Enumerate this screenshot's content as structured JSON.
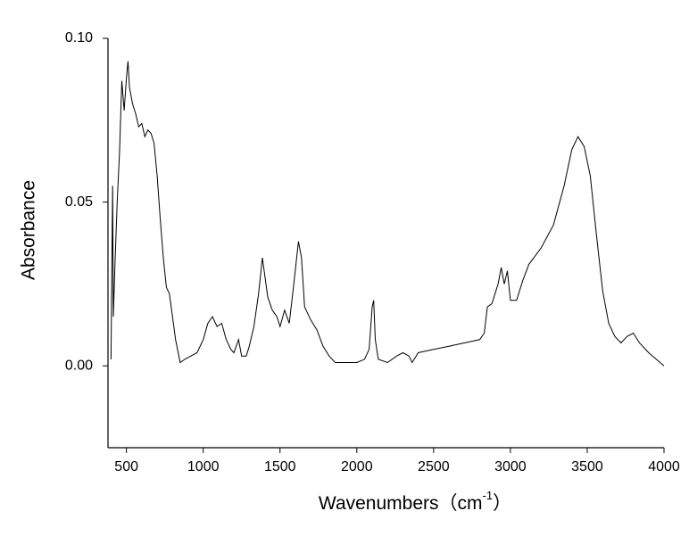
{
  "chart_data": {
    "type": "line",
    "x_label": [
      "Wavenumbers（cm",
      "-1",
      "）"
    ],
    "y_label": "Absorbance",
    "color": "#000000",
    "xlim": [
      380,
      4000
    ],
    "ylim": [
      -0.025,
      0.1
    ],
    "xticks": [
      500,
      1000,
      1500,
      2000,
      2500,
      3000,
      3500,
      4000
    ],
    "yticks": [
      {
        "value": 0.0,
        "label": "0.00"
      },
      {
        "value": 0.05,
        "label": "0.05"
      },
      {
        "value": 0.1,
        "label": "0.10"
      }
    ],
    "x": [
      400,
      405,
      410,
      415,
      425,
      440,
      455,
      470,
      485,
      500,
      510,
      520,
      540,
      560,
      580,
      600,
      620,
      640,
      660,
      680,
      700,
      720,
      740,
      760,
      780,
      800,
      820,
      850,
      880,
      920,
      960,
      1000,
      1030,
      1060,
      1090,
      1120,
      1150,
      1180,
      1200,
      1230,
      1250,
      1280,
      1300,
      1330,
      1360,
      1385,
      1400,
      1420,
      1450,
      1480,
      1500,
      1530,
      1560,
      1590,
      1620,
      1640,
      1660,
      1700,
      1740,
      1780,
      1820,
      1860,
      1900,
      1950,
      2000,
      2050,
      2080,
      2100,
      2110,
      2120,
      2140,
      2200,
      2260,
      2300,
      2340,
      2360,
      2400,
      2500,
      2600,
      2700,
      2800,
      2830,
      2850,
      2880,
      2920,
      2940,
      2960,
      2980,
      3000,
      3040,
      3080,
      3120,
      3200,
      3280,
      3350,
      3400,
      3440,
      3480,
      3520,
      3560,
      3600,
      3640,
      3680,
      3720,
      3760,
      3800,
      3840,
      3900,
      3950,
      4000
    ],
    "values": [
      0.002,
      0.03,
      0.055,
      0.015,
      0.03,
      0.05,
      0.065,
      0.087,
      0.078,
      0.088,
      0.093,
      0.085,
      0.08,
      0.077,
      0.073,
      0.074,
      0.07,
      0.072,
      0.071,
      0.068,
      0.058,
      0.045,
      0.033,
      0.024,
      0.022,
      0.015,
      0.008,
      0.001,
      0.002,
      0.003,
      0.004,
      0.008,
      0.013,
      0.015,
      0.012,
      0.013,
      0.008,
      0.005,
      0.004,
      0.008,
      0.003,
      0.003,
      0.006,
      0.012,
      0.022,
      0.033,
      0.028,
      0.021,
      0.017,
      0.015,
      0.012,
      0.017,
      0.013,
      0.025,
      0.038,
      0.033,
      0.018,
      0.014,
      0.011,
      0.006,
      0.003,
      0.001,
      0.001,
      0.001,
      0.001,
      0.002,
      0.005,
      0.018,
      0.02,
      0.008,
      0.002,
      0.001,
      0.003,
      0.004,
      0.003,
      0.001,
      0.004,
      0.005,
      0.006,
      0.007,
      0.008,
      0.01,
      0.018,
      0.019,
      0.025,
      0.03,
      0.025,
      0.029,
      0.02,
      0.02,
      0.026,
      0.031,
      0.036,
      0.043,
      0.055,
      0.066,
      0.07,
      0.067,
      0.058,
      0.04,
      0.023,
      0.013,
      0.009,
      0.007,
      0.009,
      0.01,
      0.007,
      0.004,
      0.002,
      0.0
    ]
  }
}
